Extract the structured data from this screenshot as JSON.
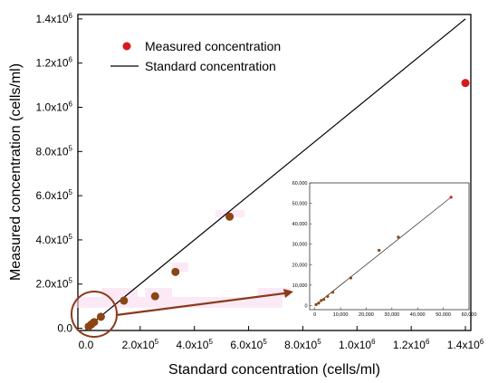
{
  "chart_data": [
    {
      "type": "scatter",
      "xlabel": "Standard concentration (cells/ml)",
      "ylabel": "Measured concentration (cells/ml)",
      "xlim": [
        -30000,
        1420000
      ],
      "ylim": [
        -10000,
        1420000
      ],
      "x_ticks": [
        {
          "value": 0,
          "label": "0.0"
        },
        {
          "value": 200000,
          "label": "2.0x10",
          "exp": "5"
        },
        {
          "value": 400000,
          "label": "4.0x10",
          "exp": "5"
        },
        {
          "value": 600000,
          "label": "6.0x10",
          "exp": "5"
        },
        {
          "value": 800000,
          "label": "8.0x10",
          "exp": "5"
        },
        {
          "value": 1000000,
          "label": "1.0x10",
          "exp": "6"
        },
        {
          "value": 1200000,
          "label": "1.2x10",
          "exp": "6"
        },
        {
          "value": 1400000,
          "label": "1.4x10",
          "exp": "6"
        }
      ],
      "y_ticks": [
        {
          "value": 0,
          "label": "0.0"
        },
        {
          "value": 200000,
          "label": "2.0x10",
          "exp": "5"
        },
        {
          "value": 400000,
          "label": "4.0x10",
          "exp": "5"
        },
        {
          "value": 600000,
          "label": "6.0x10",
          "exp": "5"
        },
        {
          "value": 800000,
          "label": "8.0x10",
          "exp": "5"
        },
        {
          "value": 1000000,
          "label": "1.0x10",
          "exp": "6"
        },
        {
          "value": 1200000,
          "label": "1.2x10",
          "exp": "6"
        },
        {
          "value": 1400000,
          "label": "1.4x10",
          "exp": "6"
        }
      ],
      "series": [
        {
          "name": "Measured concentration",
          "kind": "points",
          "color": "#d7191c",
          "highlight_color": "#8b4513",
          "points": [
            {
              "x": 10000,
              "y": 8000,
              "hl": true
            },
            {
              "x": 20000,
              "y": 18000,
              "hl": true
            },
            {
              "x": 30000,
              "y": 28000,
              "hl": true
            },
            {
              "x": 55000,
              "y": 52000,
              "hl": true
            },
            {
              "x": 140000,
              "y": 125000,
              "hl": true
            },
            {
              "x": 255000,
              "y": 145000,
              "hl": true
            },
            {
              "x": 330000,
              "y": 255000,
              "hl": true
            },
            {
              "x": 530000,
              "y": 505000,
              "hl": true
            },
            {
              "x": 1400000,
              "y": 1110000,
              "hl": false
            }
          ]
        },
        {
          "name": "Standard concentration",
          "kind": "line",
          "color": "#000000",
          "x": [
            0,
            1400000
          ],
          "y": [
            0,
            1400000
          ]
        }
      ],
      "legend": "top-left",
      "grid": false,
      "annotation": {
        "shape": "circle-with-arrow",
        "color": "#8b3a1a"
      }
    },
    {
      "type": "scatter",
      "role": "inset",
      "xlim": [
        -2000,
        60000
      ],
      "ylim": [
        -2000,
        60000
      ],
      "x_ticks": [
        "0",
        "10,000",
        "20,000",
        "30,000",
        "40,000",
        "50,000",
        "60,000"
      ],
      "y_ticks": [
        "0",
        "10,000",
        "20,000",
        "30,000",
        "40,000",
        "50,000",
        "60,000"
      ],
      "tick_values": [
        0,
        10000,
        20000,
        30000,
        40000,
        50000,
        60000
      ],
      "points": [
        {
          "x": 500,
          "y": 500
        },
        {
          "x": 1500,
          "y": 1200
        },
        {
          "x": 2500,
          "y": 2500
        },
        {
          "x": 3500,
          "y": 3000
        },
        {
          "x": 5000,
          "y": 4500
        },
        {
          "x": 7000,
          "y": 6500
        },
        {
          "x": 14000,
          "y": 13500
        },
        {
          "x": 25000,
          "y": 27000
        },
        {
          "x": 32500,
          "y": 33500
        },
        {
          "x": 53000,
          "y": 53000
        }
      ],
      "line": {
        "x": [
          0,
          53000
        ],
        "y": [
          0,
          53000
        ]
      },
      "point_color": "#8b4513",
      "last_point_color": "#d7191c"
    }
  ]
}
